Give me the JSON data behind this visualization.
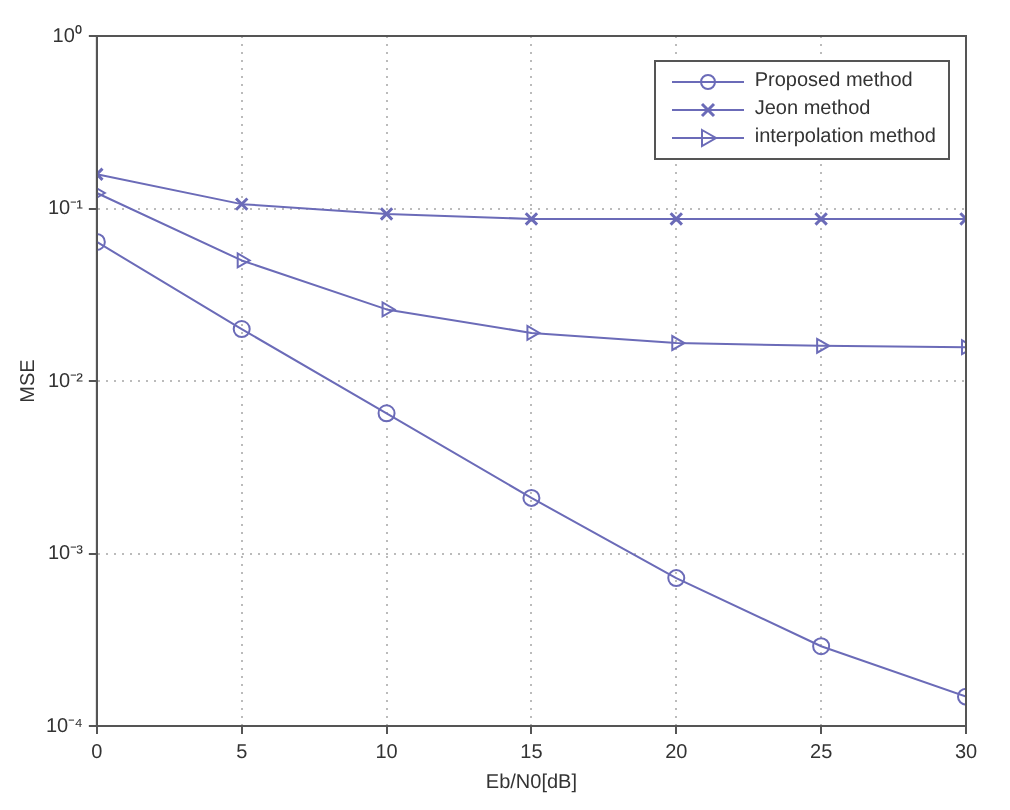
{
  "chart_data": {
    "type": "line",
    "xlabel": "Eb/N0[dB]",
    "ylabel": "MSE",
    "x": [
      0,
      5,
      10,
      15,
      20,
      25,
      30
    ],
    "series": [
      {
        "name": "Proposed method",
        "color": "#6b6bb8",
        "marker": "circle",
        "values": [
          0.064,
          0.02,
          0.0065,
          0.0021,
          0.00072,
          0.00029,
          0.000148
        ]
      },
      {
        "name": "Jeon method",
        "color": "#6b6bb8",
        "marker": "cross",
        "values": [
          0.158,
          0.106,
          0.093,
          0.087,
          0.087,
          0.087,
          0.087
        ]
      },
      {
        "name": "interpolation method",
        "color": "#6b6bb8",
        "marker": "triangle",
        "values": [
          0.123,
          0.05,
          0.026,
          0.019,
          0.0166,
          0.016,
          0.0157
        ]
      }
    ],
    "xlim": [
      0,
      30
    ],
    "xticks": [
      0,
      5,
      10,
      15,
      20,
      25,
      30
    ],
    "ylim": [
      0.0001,
      1
    ],
    "yticks": [
      {
        "value": 0.0001,
        "label": "10⁻⁴"
      },
      {
        "value": 0.001,
        "label": "10⁻³"
      },
      {
        "value": 0.01,
        "label": "10⁻²"
      },
      {
        "value": 0.1,
        "label": "10⁻¹"
      },
      {
        "value": 1,
        "label": "10⁰"
      }
    ],
    "log": "y",
    "grid": true,
    "legend": "top right",
    "line_style": "solid"
  }
}
